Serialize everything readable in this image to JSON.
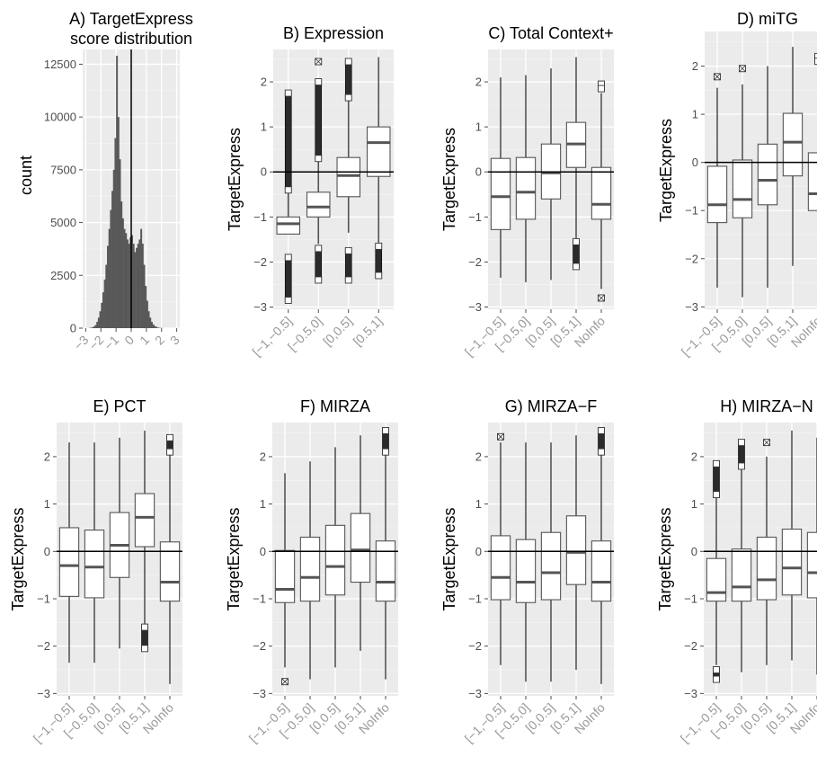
{
  "chart_data": [
    {
      "type": "bar",
      "panel": "A",
      "title": [
        "A) TargetExpress",
        "score distribution"
      ],
      "ylabel": "count",
      "xlabel": "",
      "x_ticks": [
        "-3",
        "-2",
        "-1",
        "0",
        "1",
        "2",
        "3"
      ],
      "y_ticks": [
        "0",
        "2500",
        "5000",
        "7500",
        "10000",
        "12500"
      ],
      "xlim": [
        -3.2,
        3.2
      ],
      "ylim": [
        0,
        13200
      ],
      "grid": true,
      "vline": 0,
      "bin_width": 0.1,
      "bin_start": -2.8,
      "values": [
        10,
        20,
        40,
        80,
        150,
        300,
        500,
        800,
        1200,
        1700,
        2300,
        3000,
        3900,
        4700,
        5600,
        6500,
        7500,
        9000,
        12900,
        10000,
        8000,
        6000,
        5200,
        4700,
        4500,
        4200,
        4000,
        4300,
        4400,
        4000,
        3600,
        3800,
        4000,
        4200,
        4700,
        4000,
        3000,
        2000,
        1300,
        800,
        500,
        300,
        180,
        100,
        60,
        30,
        15,
        10,
        5
      ]
    },
    {
      "type": "box",
      "panel": "B",
      "title": "B) Expression",
      "ylabel": "TargetExpress",
      "ylim": [
        -3,
        2.5
      ],
      "y_ticks": [
        "-3",
        "-2",
        "-1",
        "0",
        "1",
        "2"
      ],
      "hline": 0,
      "categories": [
        "[-1,-0.5]",
        "[-0.5,0]",
        "[0,0.5]",
        "[0.5,1]"
      ],
      "boxes": [
        {
          "wlow": -0.45,
          "q1": -1.38,
          "median": -1.15,
          "q3": -1.0,
          "whigh": -0.45,
          "outliers_above": [
            [
              -0.4,
              1.75
            ]
          ],
          "outliers_below": [
            [
              -2.85,
              -1.9
            ]
          ]
        },
        {
          "wlow": -1.6,
          "q1": -1.0,
          "median": -0.78,
          "q3": -0.45,
          "whigh": 0.25,
          "outliers_above": [
            [
              0.3,
              2.0
            ],
            [
              2.45,
              2.45
            ]
          ],
          "outliers_below": [
            [
              -2.4,
              -1.7
            ]
          ]
        },
        {
          "wlow": -1.35,
          "q1": -0.55,
          "median": -0.08,
          "q3": 0.32,
          "whigh": 1.6,
          "outliers_above": [
            [
              1.65,
              2.45
            ]
          ],
          "outliers_below": [
            [
              -2.4,
              -1.75
            ]
          ]
        },
        {
          "wlow": -1.6,
          "q1": -0.1,
          "median": 0.65,
          "q3": 1.0,
          "whigh": 2.55,
          "outliers_above": [],
          "outliers_below": [
            [
              -2.3,
              -1.65
            ]
          ]
        }
      ]
    },
    {
      "type": "box",
      "panel": "C",
      "title": "C) Total Context+",
      "ylabel": "TargetExpress",
      "ylim": [
        -3,
        2.5
      ],
      "y_ticks": [
        "-3",
        "-2",
        "-1",
        "0",
        "1",
        "2"
      ],
      "hline": 0,
      "categories": [
        "[-1,-0.5]",
        "[-0.5,0]",
        "[0,0.5]",
        "[0.5,1]",
        "NoInfo"
      ],
      "boxes": [
        {
          "wlow": -2.35,
          "q1": -1.28,
          "median": -0.55,
          "q3": 0.3,
          "whigh": 2.1,
          "outliers_above": [],
          "outliers_below": []
        },
        {
          "wlow": -2.45,
          "q1": -1.05,
          "median": -0.45,
          "q3": 0.32,
          "whigh": 2.15,
          "outliers_above": [],
          "outliers_below": []
        },
        {
          "wlow": -2.4,
          "q1": -0.6,
          "median": -0.02,
          "q3": 0.62,
          "whigh": 2.3,
          "outliers_above": [],
          "outliers_below": []
        },
        {
          "wlow": -1.7,
          "q1": 0.1,
          "median": 0.62,
          "q3": 1.1,
          "whigh": 2.55,
          "outliers_above": [],
          "outliers_below": [
            [
              -2.1,
              -1.55
            ]
          ]
        },
        {
          "wlow": -2.6,
          "q1": -1.05,
          "median": -0.72,
          "q3": 0.1,
          "whigh": 1.75,
          "outliers_above": [
            [
              1.85,
              1.95
            ]
          ],
          "outliers_below": [
            [
              -2.8,
              -2.8
            ]
          ]
        }
      ]
    },
    {
      "type": "box",
      "panel": "D",
      "title": "D) miTG",
      "ylabel": "TargetExpress",
      "ylim": [
        -3,
        2.5
      ],
      "y_ticks": [
        "-3",
        "-2",
        "-1",
        "0",
        "1",
        "2"
      ],
      "hline": 0,
      "categories": [
        "[-1,-0.5]",
        "[-0.5,0]",
        "[0,0.5]",
        "[0.5,1]",
        "NoInfo"
      ],
      "boxes": [
        {
          "wlow": -2.6,
          "q1": -1.25,
          "median": -0.88,
          "q3": -0.08,
          "whigh": 1.55,
          "outliers_above": [
            [
              1.78,
              1.78
            ]
          ],
          "outliers_below": []
        },
        {
          "wlow": -2.8,
          "q1": -1.15,
          "median": -0.77,
          "q3": 0.05,
          "whigh": 1.62,
          "outliers_above": [
            [
              1.95,
              1.95
            ]
          ],
          "outliers_below": []
        },
        {
          "wlow": -2.6,
          "q1": -0.88,
          "median": -0.37,
          "q3": 0.38,
          "whigh": 2.0,
          "outliers_above": [],
          "outliers_below": []
        },
        {
          "wlow": -2.15,
          "q1": -0.28,
          "median": 0.42,
          "q3": 1.02,
          "whigh": 2.4,
          "outliers_above": [],
          "outliers_below": []
        },
        {
          "wlow": -2.75,
          "q1": -1.0,
          "median": -0.65,
          "q3": 0.2,
          "whigh": 2.0,
          "outliers_above": [
            [
              2.1,
              2.2
            ]
          ],
          "outliers_below": []
        }
      ]
    },
    {
      "type": "box",
      "panel": "E",
      "title": "E) PCT",
      "ylabel": "TargetExpress",
      "ylim": [
        -3,
        2.5
      ],
      "y_ticks": [
        "-3",
        "-2",
        "-1",
        "0",
        "1",
        "2"
      ],
      "hline": 0,
      "categories": [
        "[-1,-0.5]",
        "[-0.5,0]",
        "[0,0.5]",
        "[0.5,1]",
        "NoInfo"
      ],
      "boxes": [
        {
          "wlow": -2.35,
          "q1": -0.95,
          "median": -0.3,
          "q3": 0.5,
          "whigh": 2.3,
          "outliers_above": [],
          "outliers_below": []
        },
        {
          "wlow": -2.35,
          "q1": -0.98,
          "median": -0.33,
          "q3": 0.45,
          "whigh": 2.3,
          "outliers_above": [],
          "outliers_below": []
        },
        {
          "wlow": -2.05,
          "q1": -0.55,
          "median": 0.13,
          "q3": 0.82,
          "whigh": 2.4,
          "outliers_above": [],
          "outliers_below": []
        },
        {
          "wlow": -1.55,
          "q1": 0.1,
          "median": 0.72,
          "q3": 1.22,
          "whigh": 2.55,
          "outliers_above": [],
          "outliers_below": [
            [
              -2.05,
              -1.6
            ]
          ]
        },
        {
          "wlow": -2.8,
          "q1": -1.05,
          "median": -0.65,
          "q3": 0.2,
          "whigh": 2.05,
          "outliers_above": [
            [
              2.1,
              2.4
            ]
          ],
          "outliers_below": []
        }
      ]
    },
    {
      "type": "box",
      "panel": "F",
      "title": "F) MIRZA",
      "ylabel": "TargetExpress",
      "ylim": [
        -3,
        2.5
      ],
      "y_ticks": [
        "-3",
        "-2",
        "-1",
        "0",
        "1",
        "2"
      ],
      "hline": 0,
      "categories": [
        "[-1,-0.5]",
        "[-0.5,0]",
        "[0,0.5]",
        "[0.5,1]",
        "NoInfo"
      ],
      "boxes": [
        {
          "wlow": -2.45,
          "q1": -1.08,
          "median": -0.8,
          "q3": 0.02,
          "whigh": 1.65,
          "outliers_above": [],
          "outliers_below": [
            [
              -2.75,
              -2.75
            ]
          ]
        },
        {
          "wlow": -2.7,
          "q1": -1.05,
          "median": -0.55,
          "q3": 0.3,
          "whigh": 1.9,
          "outliers_above": [],
          "outliers_below": []
        },
        {
          "wlow": -2.45,
          "q1": -0.92,
          "median": -0.32,
          "q3": 0.55,
          "whigh": 2.2,
          "outliers_above": [],
          "outliers_below": []
        },
        {
          "wlow": -2.1,
          "q1": -0.65,
          "median": 0.03,
          "q3": 0.8,
          "whigh": 2.45,
          "outliers_above": [],
          "outliers_below": []
        },
        {
          "wlow": -2.7,
          "q1": -1.05,
          "median": -0.65,
          "q3": 0.22,
          "whigh": 2.05,
          "outliers_above": [
            [
              2.1,
              2.55
            ]
          ],
          "outliers_below": []
        }
      ]
    },
    {
      "type": "box",
      "panel": "G",
      "title": "G) MIRZA-F",
      "ylabel": "TargetExpress",
      "ylim": [
        -3,
        2.5
      ],
      "y_ticks": [
        "-3",
        "-2",
        "-1",
        "0",
        "1",
        "2"
      ],
      "hline": 0,
      "categories": [
        "[-1,-0.5]",
        "[-0.5,0]",
        "[0,0.5]",
        "[0.5,1]",
        "NoInfo"
      ],
      "boxes": [
        {
          "wlow": -2.4,
          "q1": -1.02,
          "median": -0.55,
          "q3": 0.33,
          "whigh": 2.3,
          "outliers_above": [
            [
              2.42,
              2.42
            ]
          ],
          "outliers_below": []
        },
        {
          "wlow": -2.75,
          "q1": -1.08,
          "median": -0.65,
          "q3": 0.25,
          "whigh": 2.3,
          "outliers_above": [],
          "outliers_below": []
        },
        {
          "wlow": -2.75,
          "q1": -1.02,
          "median": -0.45,
          "q3": 0.4,
          "whigh": 2.3,
          "outliers_above": [],
          "outliers_below": []
        },
        {
          "wlow": -2.5,
          "q1": -0.7,
          "median": -0.02,
          "q3": 0.75,
          "whigh": 2.45,
          "outliers_above": [],
          "outliers_below": []
        },
        {
          "wlow": -2.8,
          "q1": -1.05,
          "median": -0.65,
          "q3": 0.22,
          "whigh": 2.05,
          "outliers_above": [
            [
              2.1,
              2.55
            ]
          ],
          "outliers_below": []
        }
      ]
    },
    {
      "type": "box",
      "panel": "H",
      "title": "H) MIRZA-N",
      "ylabel": "TargetExpress",
      "ylim": [
        -3,
        2.5
      ],
      "y_ticks": [
        "-3",
        "-2",
        "-1",
        "0",
        "1",
        "2"
      ],
      "hline": 0,
      "categories": [
        "[-1,-0.5]",
        "[-0.5,0]",
        "[0,0.5]",
        "[0.5,1]",
        "NoInfo"
      ],
      "boxes": [
        {
          "wlow": -2.4,
          "q1": -1.05,
          "median": -0.87,
          "q3": -0.15,
          "whigh": 1.15,
          "outliers_above": [
            [
              1.2,
              1.85
            ]
          ],
          "outliers_below": [
            [
              -2.7,
              -2.5
            ]
          ]
        },
        {
          "wlow": -2.55,
          "q1": -1.05,
          "median": -0.75,
          "q3": 0.05,
          "whigh": 1.75,
          "outliers_above": [
            [
              1.8,
              2.3
            ]
          ],
          "outliers_below": []
        },
        {
          "wlow": -2.4,
          "q1": -1.02,
          "median": -0.6,
          "q3": 0.3,
          "whigh": 2.0,
          "outliers_above": [
            [
              2.3,
              2.3
            ]
          ],
          "outliers_below": []
        },
        {
          "wlow": -2.3,
          "q1": -0.92,
          "median": -0.35,
          "q3": 0.47,
          "whigh": 2.55,
          "outliers_above": [],
          "outliers_below": []
        },
        {
          "wlow": -2.6,
          "q1": -0.98,
          "median": -0.45,
          "q3": 0.4,
          "whigh": 2.4,
          "outliers_above": [],
          "outliers_below": []
        }
      ]
    }
  ]
}
